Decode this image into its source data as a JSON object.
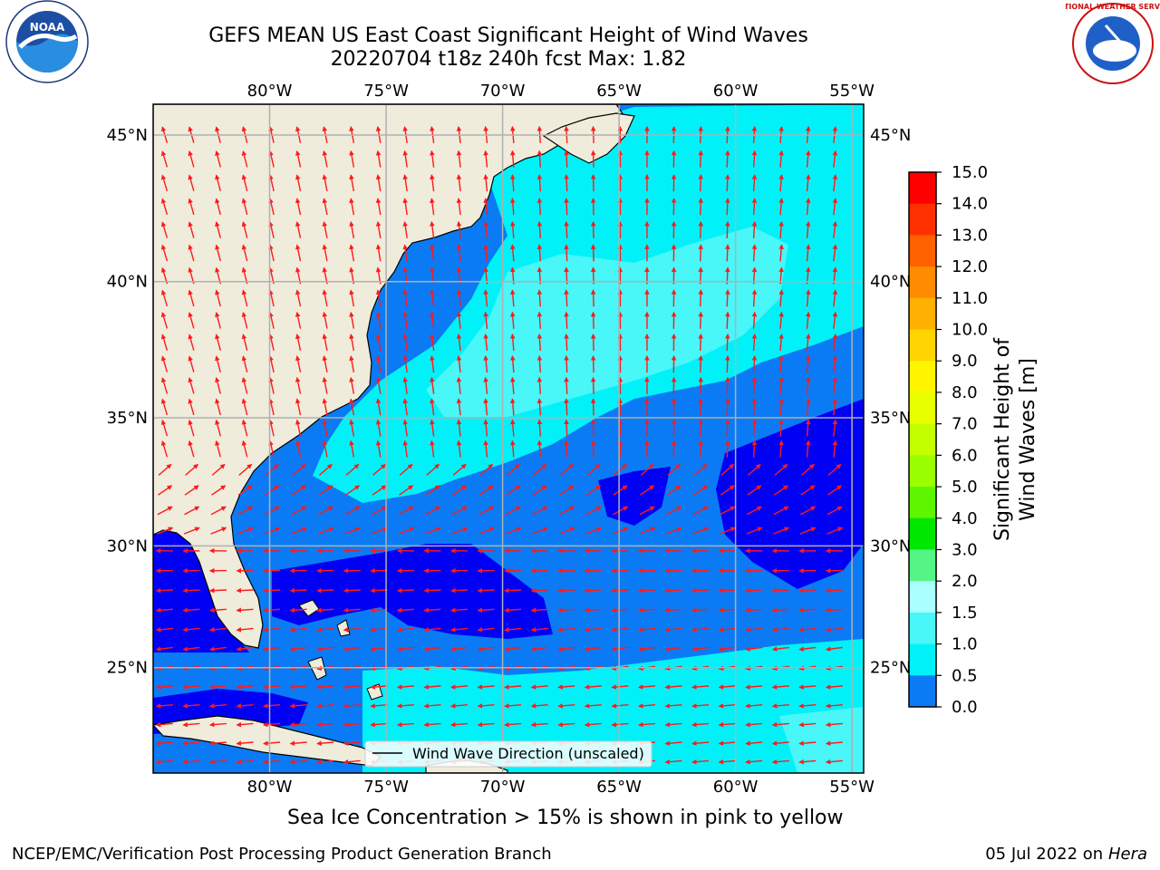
{
  "header": {
    "title_line1": "GEFS MEAN US East Coast Significant Height of Wind Waves",
    "title_line2": "20220704 t18z 240h fcst   Max: 1.82"
  },
  "logos": {
    "left_name": "noaa-logo",
    "left_text": "NOAA",
    "right_name": "nws-logo",
    "right_text": "NATIONAL WEATHER SERVICE"
  },
  "map": {
    "lon_labels": [
      "80°W",
      "75°W",
      "70°W",
      "65°W",
      "60°W",
      "55°W"
    ],
    "lon_values": [
      -80,
      -75,
      -70,
      -65,
      -60,
      -55
    ],
    "lat_labels": [
      "45°N",
      "40°N",
      "35°N",
      "30°N",
      "25°N"
    ],
    "lat_values": [
      45,
      40,
      35,
      30,
      25
    ],
    "lon_range": [
      -85,
      -54.5
    ],
    "lat_range": [
      20.5,
      46
    ],
    "legend_text": "Wind Wave Direction (unscaled)",
    "colors": {
      "land": "#efecdc",
      "band_0_0_5": "#0000f5",
      "band_0_5_1_0": "#0b7bf5",
      "band_1_0_1_5": "#00f2f8",
      "band_1_5_2_0": "#49f6f8",
      "arrow": "#ff1a1a",
      "grid": "#b0b0b0"
    }
  },
  "colorbar": {
    "label": "Significant Height of Wind Waves [m]",
    "ticks": [
      "15.0",
      "14.0",
      "13.0",
      "12.0",
      "11.0",
      "10.0",
      "9.0",
      "8.0",
      "7.0",
      "6.0",
      "5.0",
      "4.0",
      "3.0",
      "2.0",
      "1.5",
      "1.0",
      "0.5",
      "0.0"
    ],
    "colors": [
      "#ff0000",
      "#ff3000",
      "#ff6000",
      "#ff8c00",
      "#ffb000",
      "#ffd400",
      "#fff500",
      "#e8ff00",
      "#c4ff00",
      "#9aff00",
      "#5ef500",
      "#00e800",
      "#55f585",
      "#aaffff",
      "#49f6f8",
      "#00f2f8",
      "#0b7bf5",
      "#0000f5"
    ]
  },
  "caption": "Sea Ice Concentration > 15% is shown in pink to yellow",
  "footer": {
    "left": "NCEP/EMC/Verification Post Processing Product Generation Branch",
    "right_date": "05 Jul 2022 on ",
    "right_host": "Hera"
  }
}
